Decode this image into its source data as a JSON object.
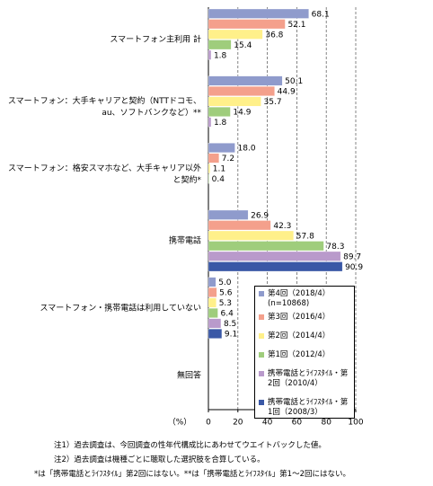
{
  "chart_data": {
    "type": "bar",
    "orientation": "horizontal",
    "categories": [
      "スマートフォン主利用 計",
      "スマートフォン：大手キャリアと契約（NTTドコモ、au、ソフトバンクなど）**",
      "スマートフォン：格安スマホなど、大手キャリア以外と契約*",
      "携帯電話",
      "スマートフォン・携帯電話は利用していない",
      "無回答"
    ],
    "series": [
      {
        "name": "第4回（2018/4）",
        "note": "(n=10868)",
        "color": "#8f9bcc",
        "values": [
          68.1,
          50.1,
          18.0,
          26.9,
          5.0,
          null
        ],
        "value_labels": [
          "68.1",
          "50.1",
          "18.0",
          "26.9",
          "5.0",
          null
        ]
      },
      {
        "name": "第3回（2016/4）",
        "color": "#f4a08c",
        "values": [
          52.1,
          44.9,
          7.2,
          42.3,
          5.6,
          null
        ],
        "value_labels": [
          "52.1",
          "44.9",
          "7.2",
          "42.3",
          "5.6",
          null
        ]
      },
      {
        "name": "第2回（2014/4）",
        "color": "#fff08a",
        "values": [
          36.8,
          35.7,
          1.1,
          57.8,
          5.3,
          null
        ],
        "value_labels": [
          "36.8",
          "35.7",
          "1.1",
          "57.8",
          "5.3",
          null
        ]
      },
      {
        "name": "第1回（2012/4）",
        "color": "#9fcd7c",
        "values": [
          15.4,
          14.9,
          0.4,
          78.3,
          6.4,
          null
        ],
        "value_labels": [
          "15.4",
          "14.9",
          "0.4",
          "78.3",
          "6.4",
          null
        ]
      },
      {
        "name": "携帯電話とﾗｲﾌｽﾀｲﾙ・第2回（2010/4）",
        "color": "#b99acb",
        "values": [
          1.8,
          1.8,
          null,
          89.7,
          8.5,
          null
        ],
        "value_labels": [
          "1.8",
          "1.8",
          null,
          "89.7",
          "8.5",
          null
        ]
      },
      {
        "name": "携帯電話とﾗｲﾌｽﾀｲﾙ・第1回（2008/3）",
        "color": "#3a58a6",
        "values": [
          null,
          null,
          null,
          90.9,
          9.1,
          null
        ],
        "value_labels": [
          null,
          null,
          null,
          "90.9",
          "9.1",
          null
        ]
      }
    ],
    "xlabel": "（%）",
    "xlim": [
      0,
      100
    ],
    "xticks": [
      0,
      20,
      40,
      60,
      80,
      100
    ],
    "grid": true,
    "notes": [
      "注1）過去調査は、今回調査の性年代構成比にあわせてウエイトバックした値。",
      "注2）過去調査は機種ごとに聴取した選択肢を合算している。",
      "*は「携帯電話とﾗｲﾌｽﾀｲﾙ」第2回にはない。**は「携帯電話とﾗｲﾌｽﾀｲﾙ」第1〜2回にはない。"
    ]
  }
}
